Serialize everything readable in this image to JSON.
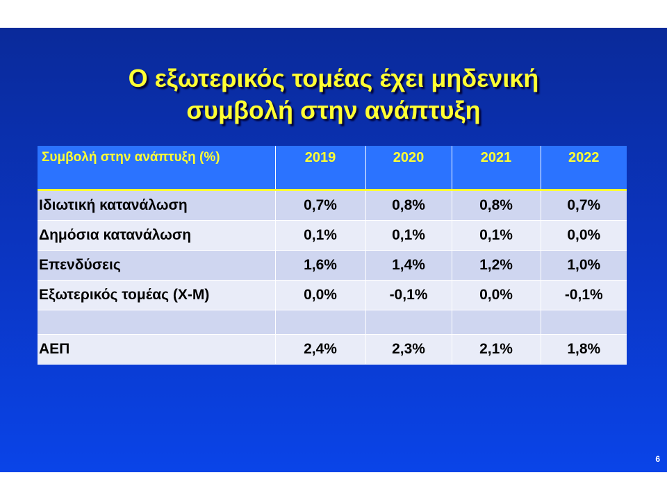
{
  "slide": {
    "title_line1": "Ο εξωτερικός τομέας έχει μηδενική",
    "title_line2": "συμβολή στην ανάπτυξη",
    "page_number": "6"
  },
  "table": {
    "header": [
      "Συμβολή στην ανάπτυξη (%)",
      "2019",
      "2020",
      "2021",
      "2022"
    ],
    "rows": [
      {
        "label": "Ιδιωτική κατανάλωση",
        "values": [
          "0,7%",
          "0,8%",
          "0,8%",
          "0,7%"
        ]
      },
      {
        "label": "Δημόσια κατανάλωση",
        "values": [
          "0,1%",
          "0,1%",
          "0,1%",
          "0,0%"
        ]
      },
      {
        "label": "Επενδύσεις",
        "values": [
          "1,6%",
          "1,4%",
          "1,2%",
          "1,0%"
        ]
      },
      {
        "label": "Εξωτερικός τομέας (Χ-Μ)",
        "values": [
          "0,0%",
          "-0,1%",
          "0,0%",
          "-0,1%"
        ]
      },
      {
        "label": "",
        "values": [
          "",
          "",
          "",
          ""
        ]
      },
      {
        "label": "ΑΕΠ",
        "values": [
          "2,4%",
          "2,3%",
          "2,1%",
          "1,8%"
        ]
      }
    ]
  },
  "colors": {
    "title": "#ffff33",
    "background": "#0b36c4",
    "header_bg": "#2b73ff"
  }
}
